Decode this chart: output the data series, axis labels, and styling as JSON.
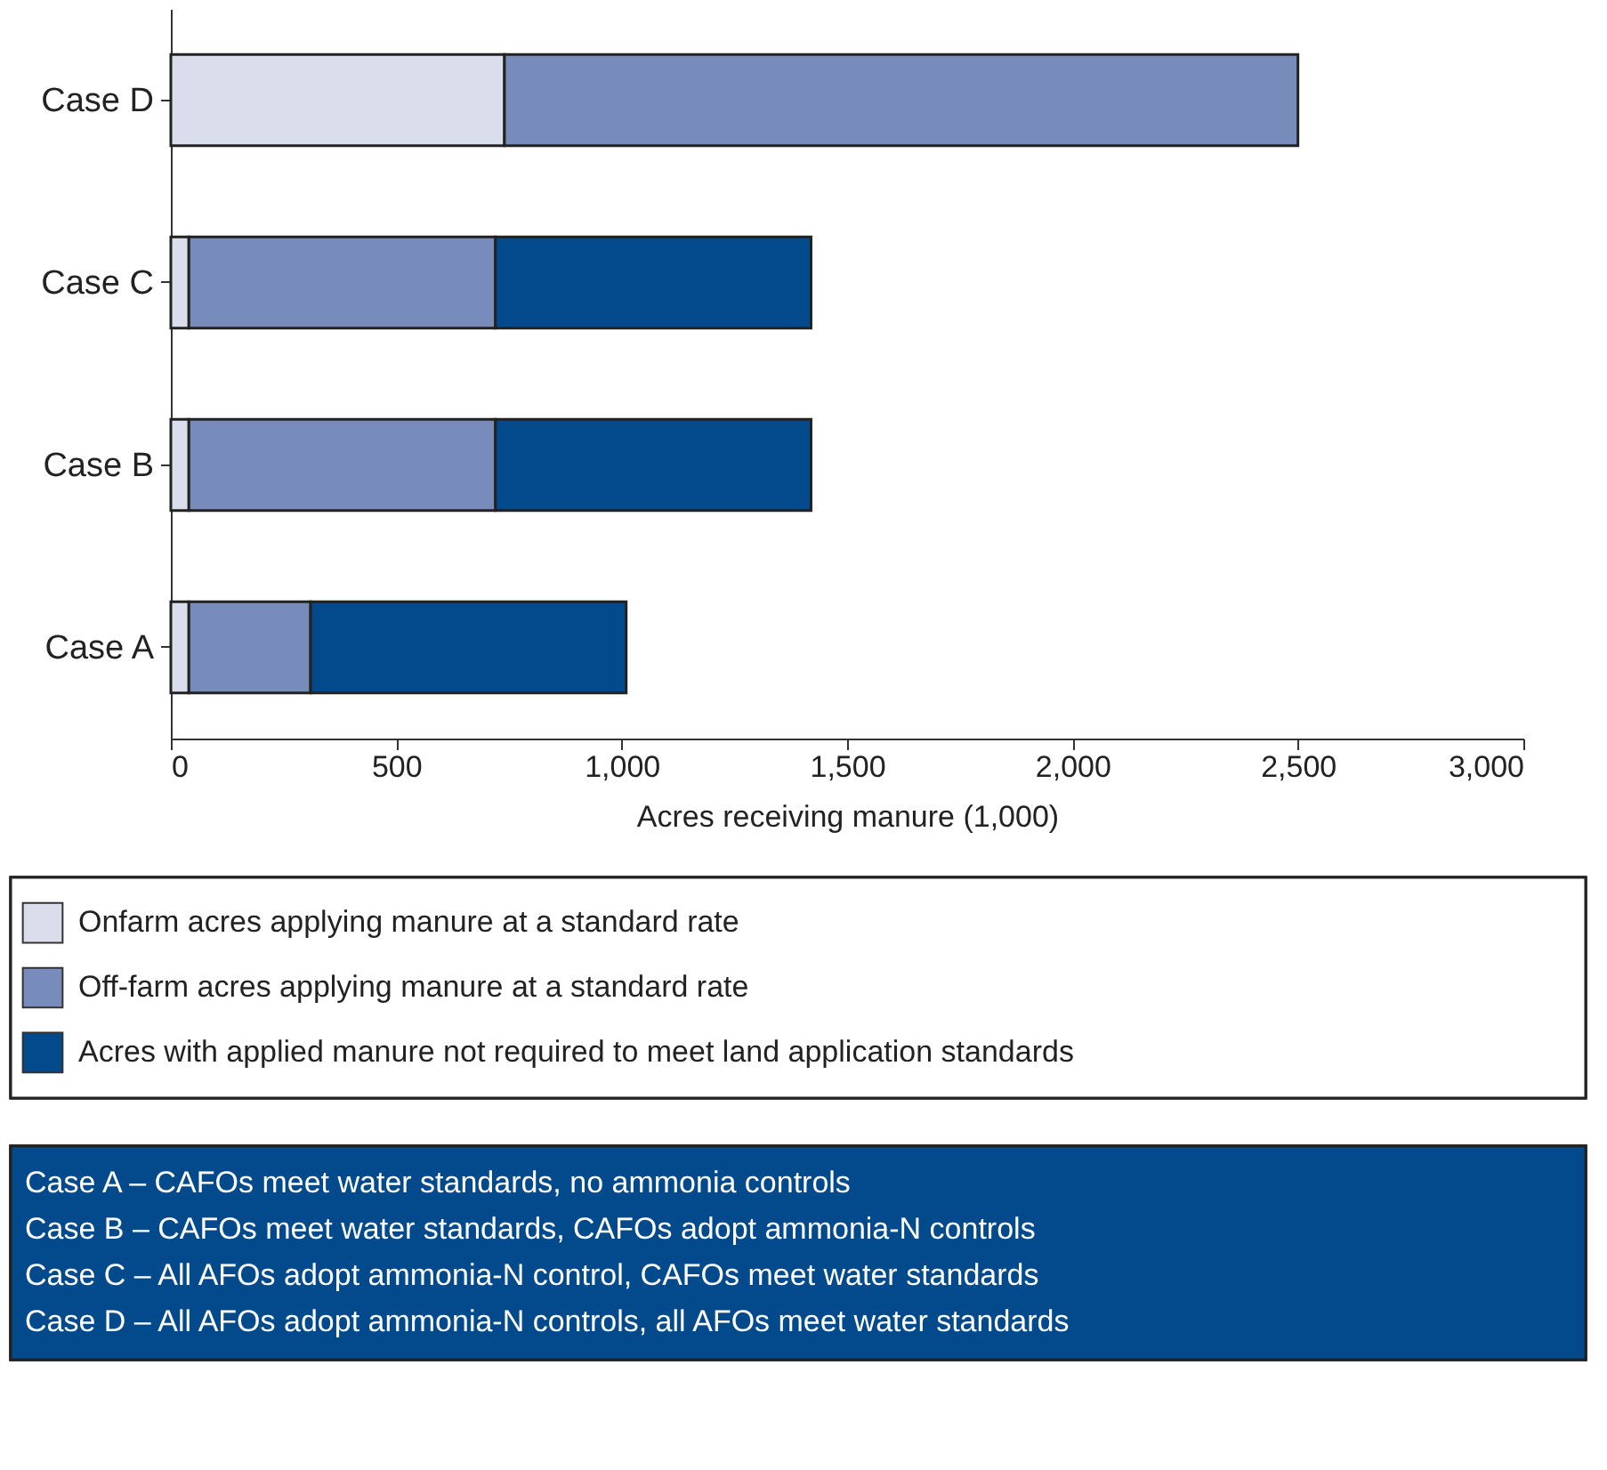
{
  "chart_data": {
    "type": "bar",
    "orientation": "horizontal",
    "stacked": true,
    "categories": [
      "Case D",
      "Case C",
      "Case B",
      "Case A"
    ],
    "xlabel": "Acres receiving manure (1,000)",
    "xlim": [
      0,
      3000
    ],
    "xticks": [
      0,
      500,
      {
        "value": 1000,
        "label": "1,000"
      },
      {
        "value": 1500,
        "label": "1,500"
      },
      {
        "value": 2000,
        "label": "2,000"
      },
      {
        "value": 2500,
        "label": "2,500"
      },
      {
        "value": 3000,
        "label": "3,000"
      }
    ],
    "series": [
      {
        "name": "Onfarm acres applying manure at a standard rate",
        "color": "#dadeec",
        "values": [
          740,
          40,
          40,
          40
        ]
      },
      {
        "name": "Off-farm acres applying manure at a standard rate",
        "color": "#788cbc",
        "values": [
          1760,
          680,
          680,
          270
        ]
      },
      {
        "name": "Acres with applied manure not required to meet land application standards",
        "color": "#034a8c",
        "values": [
          null,
          700,
          700,
          700
        ]
      }
    ],
    "legend": "bottom",
    "grid": false,
    "annotations": [
      "Case A – CAFOs meet water standards, no ammonia controls",
      "Case B – CAFOs meet water standards, CAFOs adopt ammonia-N controls",
      "Case C – All AFOs adopt ammonia-N control, CAFOs meet water standards",
      "Case D – All AFOs adopt ammonia-N controls, all AFOs meet water standards"
    ]
  }
}
